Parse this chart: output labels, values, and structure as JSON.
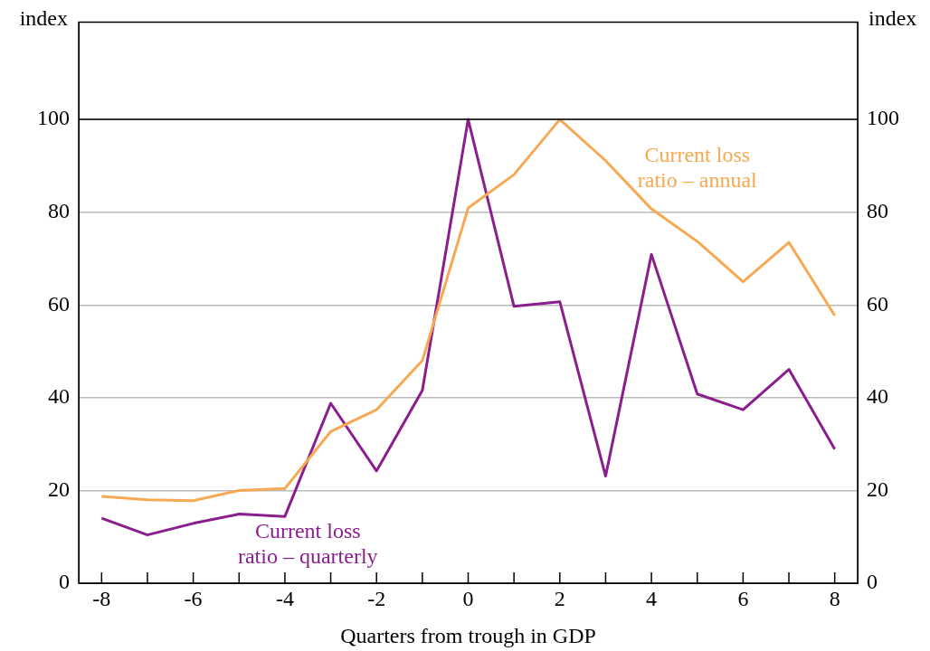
{
  "chart_data": {
    "type": "line",
    "xlabel": "Quarters from trough in GDP",
    "ylabel": "index",
    "y2label": "index",
    "x": [
      -8,
      -7,
      -6,
      -5,
      -4,
      -3,
      -2,
      -1,
      0,
      1,
      2,
      3,
      4,
      5,
      6,
      7,
      8
    ],
    "series": [
      {
        "name": "Current loss ratio – annual",
        "color": "#f7a852",
        "values": [
          18.7,
          18.0,
          17.8,
          20.0,
          20.4,
          32.7,
          37.4,
          48.0,
          80.9,
          88.1,
          100,
          91.1,
          80.7,
          73.7,
          65.0,
          73.5,
          57.7
        ]
      },
      {
        "name": "Current loss ratio – quarterly",
        "color": "#8b1e8e",
        "values": [
          14.0,
          10.4,
          12.9,
          14.9,
          14.4,
          38.8,
          24.2,
          41.6,
          100,
          59.7,
          60.7,
          23.1,
          70.9,
          40.8,
          37.4,
          46.1,
          28.9
        ]
      }
    ],
    "xlim": [
      -8.5,
      8.5
    ],
    "xticks": [
      -8,
      {
        "value": -7,
        "label": null
      },
      -6,
      {
        "value": -5,
        "label": null
      },
      -4,
      {
        "value": -3,
        "label": null
      },
      -2,
      {
        "value": -1,
        "label": null
      },
      0,
      {
        "value": 1,
        "label": null
      },
      2,
      {
        "value": 3,
        "label": null
      },
      4,
      {
        "value": 5,
        "label": null
      },
      6,
      {
        "value": 7,
        "label": null
      },
      8
    ],
    "ylim": [
      0,
      121
    ],
    "yticks": [
      0,
      20,
      40,
      60,
      80,
      100
    ],
    "y2lim": [
      0,
      121
    ],
    "y2ticks": [
      0,
      20,
      40,
      60,
      80,
      100
    ],
    "ref_lines": [
      {
        "axis": "y",
        "value": 100,
        "color": "#000000"
      }
    ],
    "grid": "y",
    "legend": false,
    "marker": "none",
    "line_style": "solid"
  }
}
